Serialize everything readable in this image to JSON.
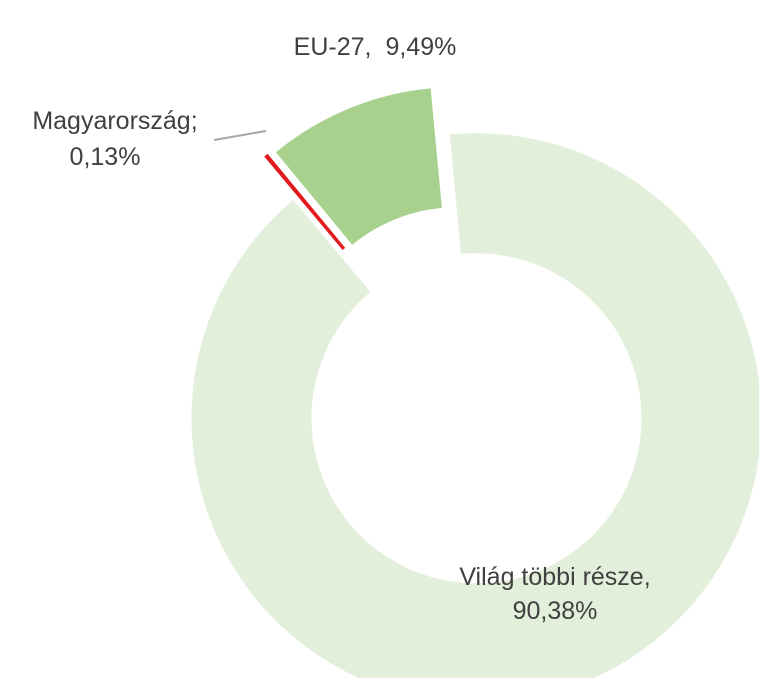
{
  "chart_data": {
    "type": "donut",
    "categories": [
      "Magyarország",
      "EU-27",
      "Világ többi része"
    ],
    "label_separators": [
      ";",
      ",",
      ","
    ],
    "values": [
      0.13,
      9.49,
      90.38
    ],
    "value_labels": [
      "0,13%",
      "9,49%",
      "90,38%"
    ],
    "colors": [
      "#e31a1c",
      "#a9d18e",
      "#e2efda"
    ]
  }
}
